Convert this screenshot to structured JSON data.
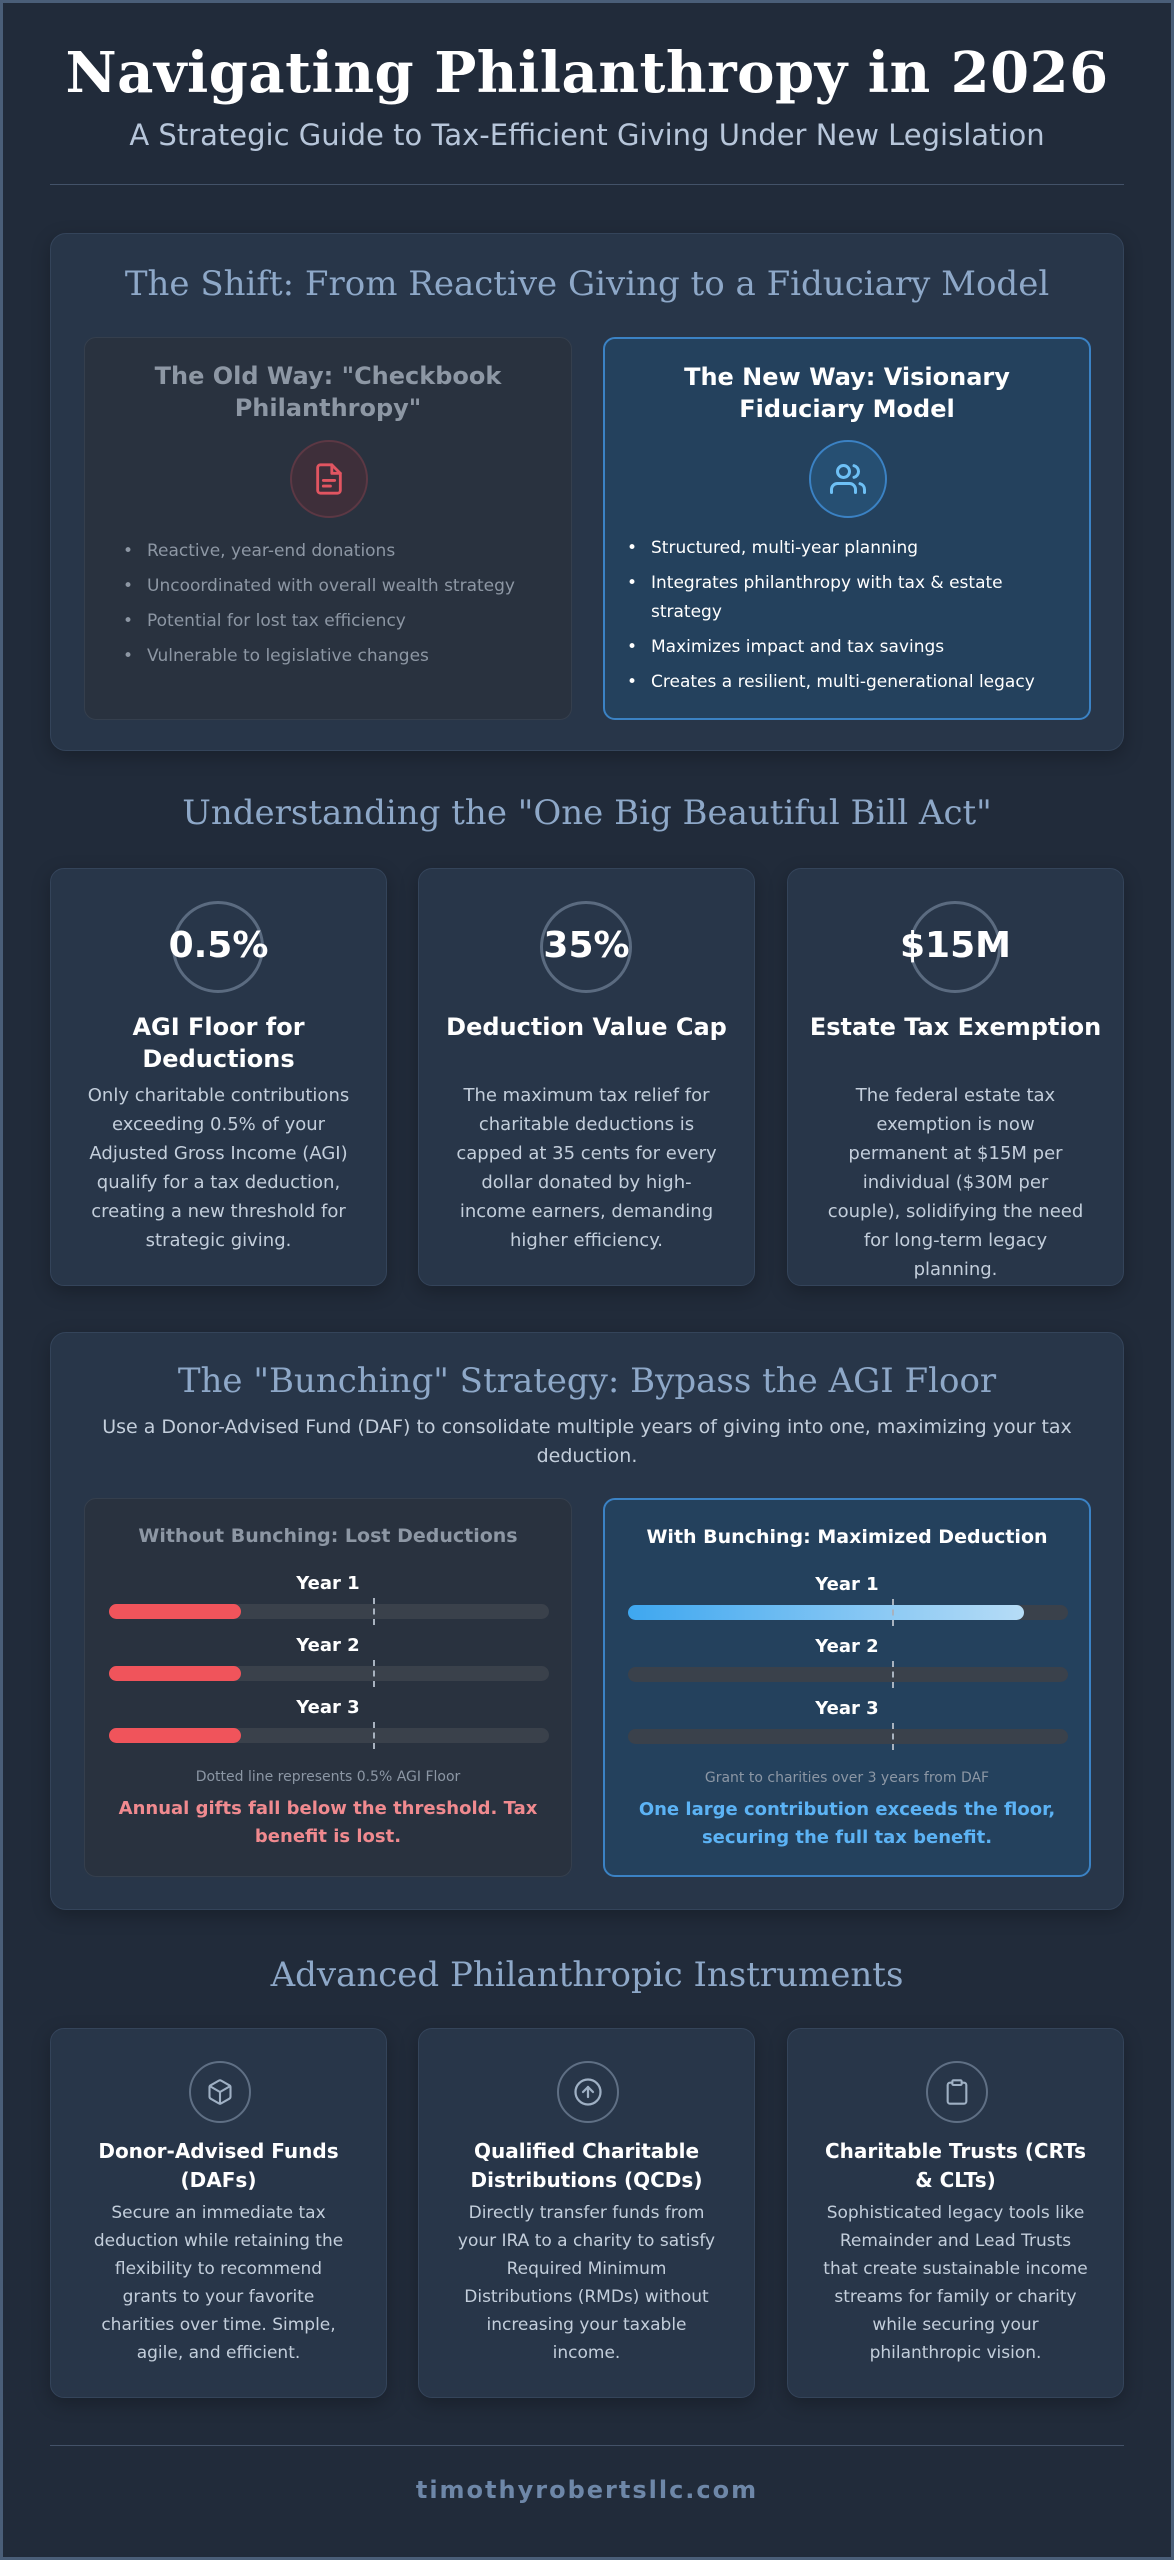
{
  "header": {
    "title": "Navigating Philanthropy in 2026",
    "subtitle": "A Strategic Guide to Tax-Efficient Giving Under New Legislation"
  },
  "shift": {
    "title": "The Shift: From Reactive Giving to a Fiduciary Model",
    "old": {
      "heading": "The Old Way: \"Checkbook Philanthropy\"",
      "icon": "document-icon",
      "items": [
        "Reactive, year-end donations",
        "Uncoordinated with overall wealth strategy",
        "Potential for lost tax efficiency",
        "Vulnerable to legislative changes"
      ]
    },
    "new": {
      "heading": "The New Way: Visionary Fiduciary Model",
      "icon": "users-icon",
      "items": [
        "Structured, multi-year planning",
        "Integrates philanthropy with tax & estate strategy",
        "Maximizes impact and tax savings",
        "Creates a resilient, multi-generational legacy"
      ]
    }
  },
  "act": {
    "title": "Understanding the \"One Big Beautiful Bill Act\"",
    "stats": [
      {
        "value": "0.5%",
        "heading": "AGI Floor for Deductions",
        "text": "Only charitable contributions exceeding 0.5% of your Adjusted Gross Income (AGI) qualify for a tax deduction, creating a new threshold for strategic giving."
      },
      {
        "value": "35%",
        "heading": "Deduction Value Cap",
        "text": "The maximum tax relief for charitable deductions is capped at 35 cents for every dollar donated by high-income earners, demanding higher efficiency."
      },
      {
        "value": "$15M",
        "heading": "Estate Tax Exemption",
        "text": "The federal estate tax exemption is now permanent at $15M per individual ($30M per couple), solidifying the need for long-term legacy planning."
      }
    ]
  },
  "bunching": {
    "title": "The \"Bunching\" Strategy: Bypass the AGI Floor",
    "subtitle": "Use a Donor-Advised Fund (DAF) to consolidate multiple years of giving into one, maximizing your tax deduction.",
    "without": {
      "heading": "Without Bunching: Lost Deductions",
      "years": [
        {
          "label": "Year 1",
          "fill": 0.3
        },
        {
          "label": "Year 2",
          "fill": 0.3
        },
        {
          "label": "Year 3",
          "fill": 0.3
        }
      ],
      "threshold": 0.6,
      "note": "Dotted line represents 0.5% AGI Floor",
      "conclusion": "Annual gifts fall below the threshold. Tax benefit is lost."
    },
    "with": {
      "heading": "With Bunching: Maximized Deduction",
      "years": [
        {
          "label": "Year 1",
          "fill": 0.9
        },
        {
          "label": "Year 2",
          "fill": 0
        },
        {
          "label": "Year 3",
          "fill": 0
        }
      ],
      "threshold": 0.6,
      "note": "Grant to charities over 3 years from DAF",
      "conclusion": "One large contribution exceeds the floor, securing the full tax benefit."
    }
  },
  "instruments": {
    "title": "Advanced Philanthropic Instruments",
    "items": [
      {
        "icon": "cube-icon",
        "heading": "Donor-Advised Funds (DAFs)",
        "text": "Secure an immediate tax deduction while retaining the flexibility to recommend grants to your favorite charities over time. Simple, agile, and efficient."
      },
      {
        "icon": "arrow-up-circle-icon",
        "heading": "Qualified Charitable Distributions (QCDs)",
        "text": "Directly transfer funds from your IRA to a charity to satisfy Required Minimum Distributions (RMDs) without increasing your taxable income."
      },
      {
        "icon": "clipboard-icon",
        "heading": "Charitable Trusts (CRTs & CLTs)",
        "text": "Sophisticated legacy tools like Remainder and Lead Trusts that create sustainable income streams for family or charity while securing your philanthropic vision."
      }
    ]
  },
  "footer": {
    "text": "timothyrobertsllc.com"
  },
  "colors": {
    "background": "#212b3a",
    "old_accent": "#e25561",
    "new_accent": "#3b82c4",
    "bar_red": "#f0545b",
    "bar_blue_start": "#3ea7f0",
    "bar_blue_end": "#b6dcf6",
    "link_blue": "#5cb3f5"
  }
}
